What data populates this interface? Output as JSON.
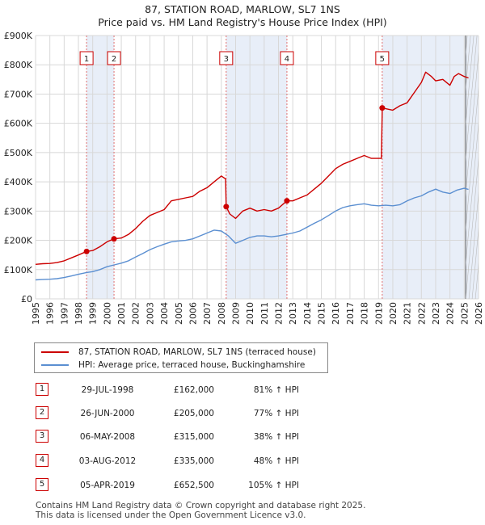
{
  "title_line1": "87, STATION ROAD, MARLOW, SL7 1NS",
  "title_line2": "Price paid vs. HM Land Registry's House Price Index (HPI)",
  "legend": {
    "property_label": "87, STATION ROAD, MARLOW, SL7 1NS (terraced house)",
    "hpi_label": "HPI: Average price, terraced house, Buckinghamshire"
  },
  "colors": {
    "property": "#cc0000",
    "hpi": "#5b8fd1",
    "shade": "#e8eef8",
    "grid": "#d8d8d8",
    "marker_line": "#e07070"
  },
  "sales": [
    {
      "num": "1",
      "date": "29-JUL-1998",
      "price": "£162,000",
      "hpi": "81% ↑ HPI"
    },
    {
      "num": "2",
      "date": "26-JUN-2000",
      "price": "£205,000",
      "hpi": "77% ↑ HPI"
    },
    {
      "num": "3",
      "date": "06-MAY-2008",
      "price": "£315,000",
      "hpi": "38% ↑ HPI"
    },
    {
      "num": "4",
      "date": "03-AUG-2012",
      "price": "£335,000",
      "hpi": "48% ↑ HPI"
    },
    {
      "num": "5",
      "date": "05-APR-2019",
      "price": "£652,500",
      "hpi": "105% ↑ HPI"
    }
  ],
  "footer_line1": "Contains HM Land Registry data © Crown copyright and database right 2025.",
  "footer_line2": "This data is licensed under the Open Government Licence v3.0.",
  "chart_data": {
    "type": "line",
    "title": "87, STATION ROAD, MARLOW, SL7 1NS — Price paid vs. HM Land Registry's House Price Index (HPI)",
    "xlim": [
      1995,
      2026
    ],
    "ylim": [
      0,
      900000
    ],
    "x_ticks": [
      1995,
      1996,
      1997,
      1998,
      1999,
      2000,
      2001,
      2002,
      2003,
      2004,
      2005,
      2006,
      2007,
      2008,
      2009,
      2010,
      2011,
      2012,
      2013,
      2014,
      2015,
      2016,
      2017,
      2018,
      2019,
      2020,
      2021,
      2022,
      2023,
      2024,
      2025,
      2026
    ],
    "y_ticks": [
      0,
      100000,
      200000,
      300000,
      400000,
      500000,
      600000,
      700000,
      800000,
      900000
    ],
    "y_tick_labels": [
      "£0",
      "£100K",
      "£200K",
      "£300K",
      "£400K",
      "£500K",
      "£600K",
      "£700K",
      "£800K",
      "£900K"
    ],
    "forecast_start": 2025.1,
    "shaded_ranges": [
      [
        1998.57,
        2000.49
      ],
      [
        2008.34,
        2012.59
      ],
      [
        2019.26,
        2026
      ]
    ],
    "sale_points": [
      {
        "label": "1",
        "x": 1998.57,
        "y": 162000
      },
      {
        "label": "2",
        "x": 2000.49,
        "y": 205000
      },
      {
        "label": "3",
        "x": 2008.34,
        "y": 315000
      },
      {
        "label": "4",
        "x": 2012.59,
        "y": 335000
      },
      {
        "label": "5",
        "x": 2019.26,
        "y": 652500
      }
    ],
    "series": [
      {
        "name": "87, STATION ROAD, MARLOW, SL7 1NS (terraced house)",
        "x": [
          1995.0,
          1995.5,
          1996.0,
          1996.5,
          1997.0,
          1997.5,
          1998.0,
          1998.57,
          1999.0,
          1999.5,
          2000.0,
          2000.49,
          2001.0,
          2001.5,
          2002.0,
          2002.5,
          2003.0,
          2003.5,
          2004.0,
          2004.5,
          2005.0,
          2005.5,
          2006.0,
          2006.5,
          2007.0,
          2007.5,
          2008.0,
          2008.3,
          2008.34,
          2008.6,
          2009.0,
          2009.5,
          2010.0,
          2010.5,
          2011.0,
          2011.5,
          2012.0,
          2012.59,
          2013.0,
          2013.5,
          2014.0,
          2014.5,
          2015.0,
          2015.5,
          2016.0,
          2016.5,
          2017.0,
          2017.5,
          2018.0,
          2018.5,
          2019.2,
          2019.26,
          2019.5,
          2020.0,
          2020.5,
          2021.0,
          2021.5,
          2022.0,
          2022.3,
          2022.7,
          2023.0,
          2023.5,
          2024.0,
          2024.3,
          2024.6,
          2025.0,
          2025.3
        ],
        "y": [
          118000,
          120000,
          121000,
          124000,
          130000,
          140000,
          150000,
          162000,
          165000,
          178000,
          195000,
          205000,
          208000,
          220000,
          240000,
          265000,
          285000,
          295000,
          305000,
          335000,
          340000,
          345000,
          350000,
          368000,
          380000,
          400000,
          420000,
          410000,
          315000,
          290000,
          275000,
          300000,
          310000,
          300000,
          305000,
          300000,
          310000,
          335000,
          335000,
          345000,
          355000,
          375000,
          395000,
          420000,
          445000,
          460000,
          470000,
          480000,
          490000,
          480000,
          480000,
          652500,
          650000,
          645000,
          660000,
          670000,
          705000,
          740000,
          775000,
          760000,
          745000,
          750000,
          730000,
          760000,
          770000,
          760000,
          755000
        ]
      },
      {
        "name": "HPI: Average price, terraced house, Buckinghamshire",
        "x": [
          1995.0,
          1995.5,
          1996.0,
          1996.5,
          1997.0,
          1997.5,
          1998.0,
          1998.57,
          1999.0,
          1999.5,
          2000.0,
          2000.5,
          2001.0,
          2001.5,
          2002.0,
          2002.5,
          2003.0,
          2003.5,
          2004.0,
          2004.5,
          2005.0,
          2005.5,
          2006.0,
          2006.5,
          2007.0,
          2007.5,
          2008.0,
          2008.5,
          2009.0,
          2009.5,
          2010.0,
          2010.5,
          2011.0,
          2011.5,
          2012.0,
          2012.5,
          2013.0,
          2013.5,
          2014.0,
          2014.5,
          2015.0,
          2015.5,
          2016.0,
          2016.5,
          2017.0,
          2017.5,
          2018.0,
          2018.5,
          2019.0,
          2019.5,
          2020.0,
          2020.5,
          2021.0,
          2021.5,
          2022.0,
          2022.5,
          2023.0,
          2023.5,
          2024.0,
          2024.5,
          2025.0,
          2025.3
        ],
        "y": [
          65000,
          66000,
          67000,
          69000,
          73000,
          78000,
          84000,
          90000,
          93000,
          100000,
          110000,
          116000,
          122000,
          130000,
          143000,
          155000,
          168000,
          178000,
          187000,
          195000,
          198000,
          200000,
          205000,
          215000,
          225000,
          235000,
          232000,
          215000,
          190000,
          200000,
          210000,
          215000,
          215000,
          212000,
          215000,
          220000,
          225000,
          232000,
          245000,
          258000,
          270000,
          285000,
          300000,
          312000,
          318000,
          322000,
          325000,
          320000,
          318000,
          320000,
          318000,
          322000,
          335000,
          345000,
          352000,
          365000,
          375000,
          365000,
          360000,
          372000,
          378000,
          374000
        ]
      }
    ]
  }
}
